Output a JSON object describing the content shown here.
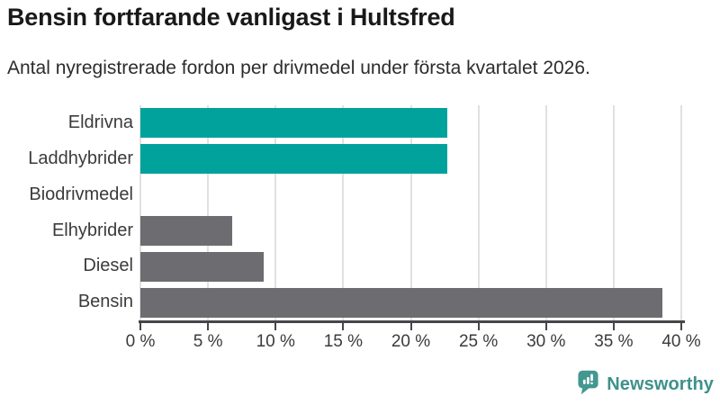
{
  "chart_data": {
    "type": "bar",
    "orientation": "horizontal",
    "title": "Bensin fortfarande vanligast i Hultsfred",
    "subtitle": "Antal nyregistrerade fordon per drivmedel under första kvartalet 2026.",
    "categories": [
      "Eldrivna",
      "Laddhybrider",
      "Biodrivmedel",
      "Elhybrider",
      "Diesel",
      "Bensin"
    ],
    "values": [
      22.7,
      22.7,
      0,
      6.8,
      9.1,
      38.6
    ],
    "unit": "%",
    "xlim": [
      0,
      40
    ],
    "x_tick_values": [
      0,
      5,
      10,
      15,
      20,
      25,
      30,
      35,
      40
    ],
    "x_tick_labels": [
      "0 %",
      "5 %",
      "10 %",
      "15 %",
      "20 %",
      "25 %",
      "30 %",
      "35 %",
      "40 %"
    ],
    "grid": true,
    "legend": false,
    "bar_colors": [
      "#00a29b",
      "#00a29b",
      "#6c6c71",
      "#6c6c71",
      "#6c6c71",
      "#6c6c71"
    ]
  },
  "colors": {
    "accent_teal": "#00a29b",
    "bar_gray": "#6c6c71",
    "gridline": "#e1e1e1",
    "axis": "#46464a",
    "text": "#3b3b3b"
  },
  "branding": {
    "logo_text": "Newsworthy",
    "logo_icon": "newsworthy-bar-chart-bubble-icon",
    "logo_color": "#42988f",
    "logo_text_color": "#3e918a"
  }
}
